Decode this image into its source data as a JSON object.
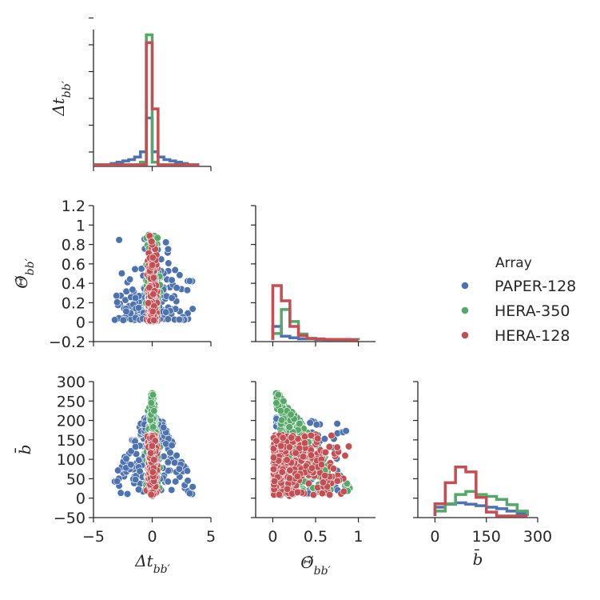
{
  "chart_data": {
    "type": "scatter",
    "description_kind": "pair-grid (corner) with step histograms on diagonal and scatter off-diagonal",
    "variables": [
      {
        "key": "dt",
        "label": "Δt",
        "sub": "bb′",
        "range": [
          -5,
          5
        ],
        "ticks": [
          -5,
          0,
          5
        ]
      },
      {
        "key": "theta",
        "label": "Θ̃",
        "sub": "bb′",
        "range": [
          -0.2,
          1.2
        ],
        "ticks": [
          0.0,
          0.5,
          1.0
        ],
        "yticks": [
          -0.2,
          0.0,
          0.2,
          0.4,
          0.6,
          0.8,
          1.0,
          1.2
        ]
      },
      {
        "key": "b",
        "label": "b̄",
        "sub": "",
        "range": [
          -50,
          300
        ],
        "ticks": [
          0,
          150,
          300
        ],
        "yticks": [
          -50,
          0,
          50,
          100,
          150,
          200,
          250,
          300
        ]
      }
    ],
    "legend": {
      "title": "Array",
      "position": "right",
      "entries": [
        {
          "name": "PAPER-128",
          "color": "#4c72b0"
        },
        {
          "name": "HERA-350",
          "color": "#55a868"
        },
        {
          "name": "HERA-128",
          "color": "#c44e52"
        }
      ]
    },
    "histograms": {
      "dt": {
        "edges": [
          -5,
          -4.5,
          -4,
          -3.5,
          -3,
          -2.5,
          -2,
          -1.5,
          -1,
          -0.5,
          0,
          0.5,
          1,
          1.5,
          2,
          2.5,
          3,
          3.5,
          4
        ],
        "series": [
          {
            "name": "PAPER-128",
            "values": [
              0,
              0,
              0,
              0.01,
              0.02,
              0.03,
              0.04,
              0.06,
              0.1,
              0.36,
              0.1,
              0.06,
              0.04,
              0.03,
              0.02,
              0.01,
              0,
              0
            ]
          },
          {
            "name": "HERA-350",
            "values": [
              0,
              0,
              0,
              0,
              0,
              0,
              0,
              0,
              0.02,
              1.0,
              0.02,
              0,
              0,
              0,
              0,
              0,
              0,
              0
            ]
          },
          {
            "name": "HERA-128",
            "values": [
              0,
              0,
              0,
              0,
              0,
              0,
              0,
              0,
              0,
              0.94,
              0.43,
              0,
              0,
              0,
              0,
              0,
              0,
              0
            ]
          }
        ]
      },
      "theta": {
        "edges": [
          0.0,
          0.1,
          0.2,
          0.3,
          0.4,
          0.5,
          0.6,
          0.7,
          0.8,
          0.9,
          1.0
        ],
        "series": [
          {
            "name": "PAPER-128",
            "values": [
              0.25,
              0.07,
              0.04,
              0.02,
              0.02,
              0.01,
              0.01,
              0.01,
              0.01,
              0.01
            ]
          },
          {
            "name": "HERA-350",
            "values": [
              0.12,
              0.56,
              0.34,
              0.11,
              0.03,
              0.02,
              0.01,
              0.01,
              0.01,
              0.01
            ]
          },
          {
            "name": "HERA-128",
            "values": [
              1.0,
              0.72,
              0.25,
              0.08,
              0.03,
              0.02,
              0.01,
              0.01,
              0.01,
              0
            ]
          }
        ]
      },
      "b": {
        "edges": [
          0,
          30,
          60,
          90,
          120,
          150,
          180,
          210,
          240,
          270
        ],
        "series": [
          {
            "name": "PAPER-128",
            "values": [
              0.18,
              0.24,
              0.27,
              0.24,
              0.21,
              0.18,
              0.15,
              0.1,
              0.05
            ]
          },
          {
            "name": "HERA-350",
            "values": [
              0.1,
              0.25,
              0.44,
              0.5,
              0.44,
              0.4,
              0.34,
              0.23,
              0.1
            ]
          },
          {
            "name": "HERA-128",
            "values": [
              0.25,
              0.68,
              1.0,
              0.9,
              0.38,
              0.08,
              0,
              0,
              0
            ]
          }
        ]
      }
    }
  }
}
